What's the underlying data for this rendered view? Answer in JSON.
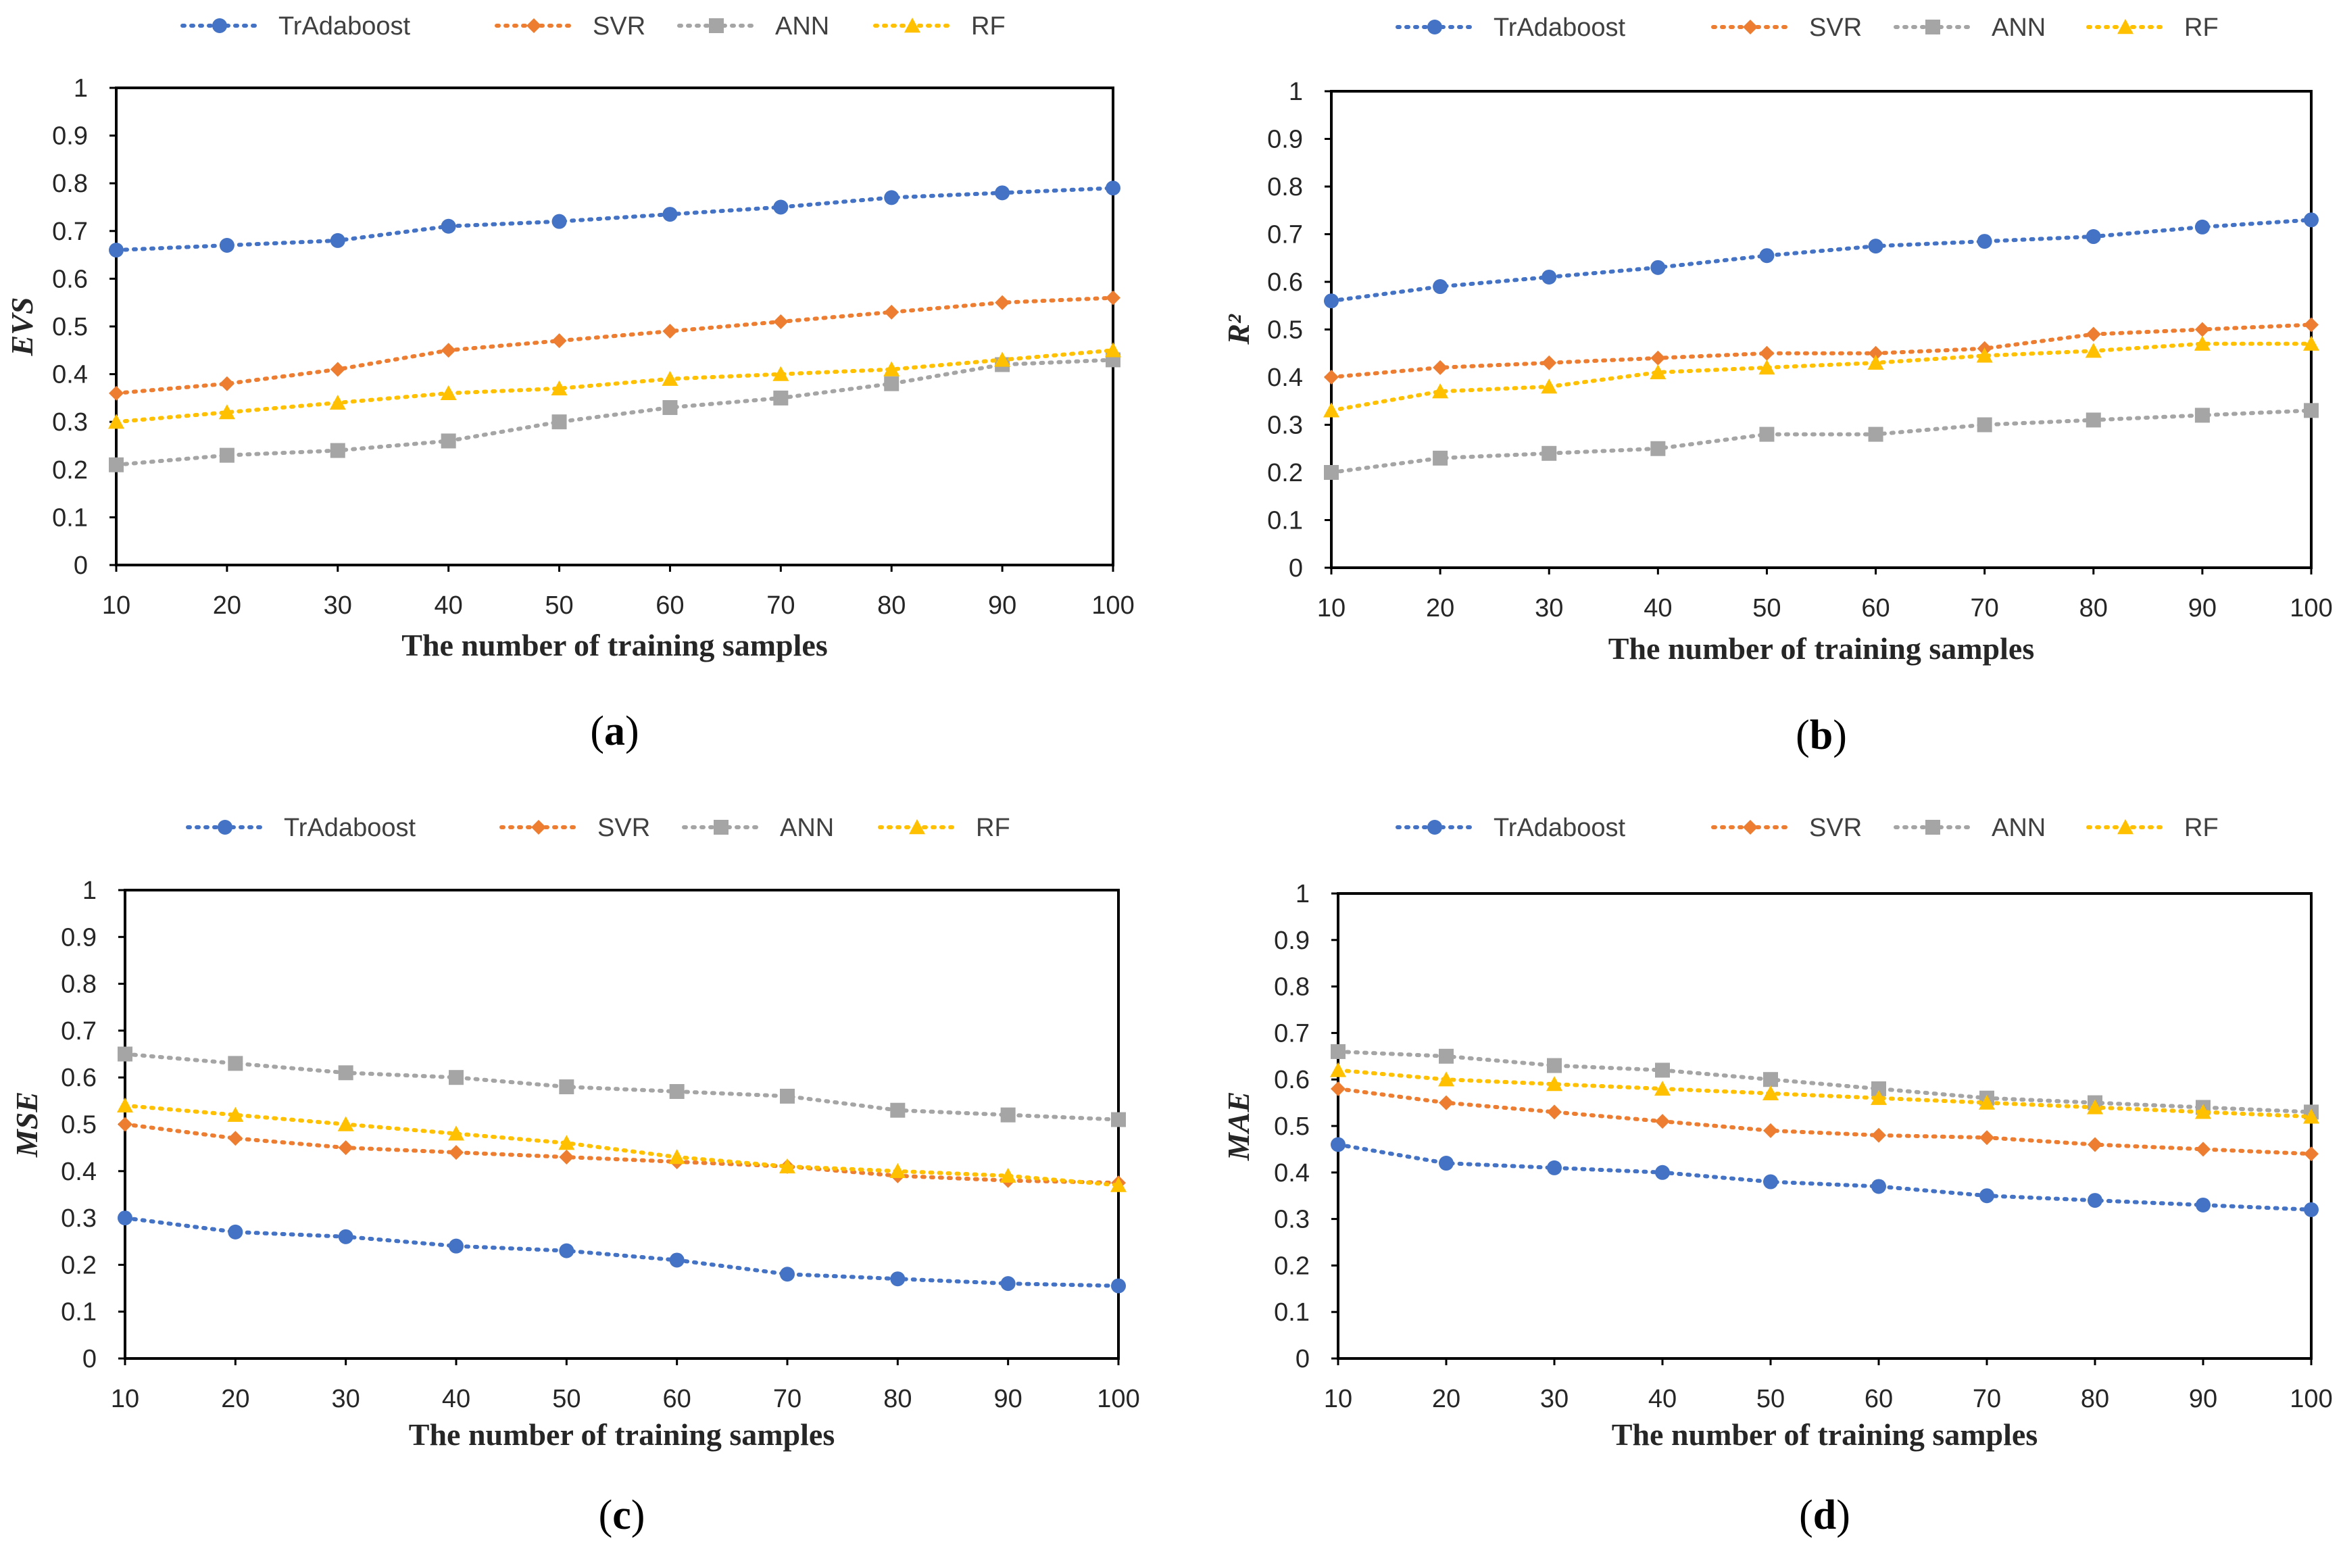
{
  "colors": {
    "TrAdaboost": "#4472C4",
    "SVR": "#ED7D31",
    "ANN": "#A5A5A5",
    "RF": "#FFC000"
  },
  "chart_data": [
    {
      "type": "line",
      "panel_label": "a",
      "panel_open": "(",
      "panel_close": ")",
      "ylabel": "EVS",
      "xlabel": "The number of training samples",
      "legend": [
        "TrAdaboost",
        "SVR",
        "ANN",
        "RF"
      ],
      "x": [
        10,
        20,
        30,
        40,
        50,
        60,
        70,
        80,
        90,
        100
      ],
      "xtick_labels": [
        "10",
        "20",
        "30",
        "40",
        "50",
        "60",
        "70",
        "80",
        "90",
        "100"
      ],
      "ylim": [
        0,
        1
      ],
      "ytick_labels": [
        "0",
        "0.1",
        "0.2",
        "0.3",
        "0.4",
        "0.5",
        "0.6",
        "0.7",
        "0.8",
        "0.9",
        "1"
      ],
      "series": [
        {
          "name": "TrAdaboost",
          "marker": "circle",
          "values": [
            0.66,
            0.67,
            0.68,
            0.71,
            0.72,
            0.735,
            0.75,
            0.77,
            0.78,
            0.79
          ]
        },
        {
          "name": "SVR",
          "marker": "diamond",
          "values": [
            0.36,
            0.38,
            0.41,
            0.45,
            0.47,
            0.49,
            0.51,
            0.53,
            0.55,
            0.56
          ]
        },
        {
          "name": "ANN",
          "marker": "square",
          "values": [
            0.21,
            0.23,
            0.24,
            0.26,
            0.3,
            0.33,
            0.35,
            0.38,
            0.42,
            0.43
          ]
        },
        {
          "name": "RF",
          "marker": "triangle",
          "values": [
            0.3,
            0.32,
            0.34,
            0.36,
            0.37,
            0.39,
            0.4,
            0.41,
            0.43,
            0.45
          ]
        }
      ]
    },
    {
      "type": "line",
      "panel_label": "b",
      "panel_open": "(",
      "panel_close": ")",
      "ylabel": "R²",
      "xlabel": "The number of training samples",
      "legend": [
        "TrAdaboost",
        "SVR",
        "ANN",
        "RF"
      ],
      "x": [
        10,
        20,
        30,
        40,
        50,
        60,
        70,
        80,
        90,
        100
      ],
      "xtick_labels": [
        "10",
        "20",
        "30",
        "40",
        "50",
        "60",
        "70",
        "80",
        "90",
        "100"
      ],
      "ylim": [
        0,
        1
      ],
      "ytick_labels": [
        "0",
        "0.1",
        "0.2",
        "0.3",
        "0.4",
        "0.5",
        "0.6",
        "0.7",
        "0.8",
        "0.9",
        "1"
      ],
      "series": [
        {
          "name": "TrAdaboost",
          "marker": "circle",
          "values": [
            0.56,
            0.59,
            0.61,
            0.63,
            0.655,
            0.675,
            0.685,
            0.695,
            0.715,
            0.73
          ]
        },
        {
          "name": "SVR",
          "marker": "diamond",
          "values": [
            0.4,
            0.42,
            0.43,
            0.44,
            0.45,
            0.45,
            0.46,
            0.49,
            0.5,
            0.51
          ]
        },
        {
          "name": "ANN",
          "marker": "square",
          "values": [
            0.2,
            0.23,
            0.24,
            0.25,
            0.28,
            0.28,
            0.3,
            0.31,
            0.32,
            0.33
          ]
        },
        {
          "name": "RF",
          "marker": "triangle",
          "values": [
            0.33,
            0.37,
            0.38,
            0.41,
            0.42,
            0.43,
            0.445,
            0.455,
            0.47,
            0.47
          ]
        }
      ]
    },
    {
      "type": "line",
      "panel_label": "c",
      "panel_open": "(",
      "panel_close": ")",
      "ylabel": "MSE",
      "xlabel": "The number of training samples",
      "legend": [
        "TrAdaboost",
        "SVR",
        "ANN",
        "RF"
      ],
      "x": [
        10,
        20,
        30,
        40,
        50,
        60,
        70,
        80,
        90,
        100
      ],
      "xtick_labels": [
        "10",
        "20",
        "30",
        "40",
        "50",
        "60",
        "70",
        "80",
        "90",
        "100"
      ],
      "ylim": [
        0,
        1
      ],
      "ytick_labels": [
        "0",
        "0.1",
        "0.2",
        "0.3",
        "0.4",
        "0.5",
        "0.6",
        "0.7",
        "0.8",
        "0.9",
        "1"
      ],
      "series": [
        {
          "name": "TrAdaboost",
          "marker": "circle",
          "values": [
            0.3,
            0.27,
            0.26,
            0.24,
            0.23,
            0.21,
            0.18,
            0.17,
            0.16,
            0.155
          ]
        },
        {
          "name": "SVR",
          "marker": "diamond",
          "values": [
            0.5,
            0.47,
            0.45,
            0.44,
            0.43,
            0.42,
            0.41,
            0.39,
            0.38,
            0.375
          ]
        },
        {
          "name": "ANN",
          "marker": "square",
          "values": [
            0.65,
            0.63,
            0.61,
            0.6,
            0.58,
            0.57,
            0.56,
            0.53,
            0.52,
            0.51
          ]
        },
        {
          "name": "RF",
          "marker": "triangle",
          "values": [
            0.54,
            0.52,
            0.5,
            0.48,
            0.46,
            0.43,
            0.41,
            0.4,
            0.39,
            0.37
          ]
        }
      ]
    },
    {
      "type": "line",
      "panel_label": "d",
      "panel_open": "(",
      "panel_close": ")",
      "ylabel": "MAE",
      "xlabel": "The number of training samples",
      "legend": [
        "TrAdaboost",
        "SVR",
        "ANN",
        "RF"
      ],
      "x": [
        10,
        20,
        30,
        40,
        50,
        60,
        70,
        80,
        90,
        100
      ],
      "xtick_labels": [
        "10",
        "20",
        "30",
        "40",
        "50",
        "60",
        "70",
        "80",
        "90",
        "100"
      ],
      "ylim": [
        0,
        1
      ],
      "ytick_labels": [
        "0",
        "0.1",
        "0.2",
        "0.3",
        "0.4",
        "0.5",
        "0.6",
        "0.7",
        "0.8",
        "0.9",
        "1"
      ],
      "series": [
        {
          "name": "TrAdaboost",
          "marker": "circle",
          "values": [
            0.46,
            0.42,
            0.41,
            0.4,
            0.38,
            0.37,
            0.35,
            0.34,
            0.33,
            0.32
          ]
        },
        {
          "name": "SVR",
          "marker": "diamond",
          "values": [
            0.58,
            0.55,
            0.53,
            0.51,
            0.49,
            0.48,
            0.475,
            0.46,
            0.45,
            0.44
          ]
        },
        {
          "name": "ANN",
          "marker": "square",
          "values": [
            0.66,
            0.65,
            0.63,
            0.62,
            0.6,
            0.58,
            0.56,
            0.55,
            0.54,
            0.53
          ]
        },
        {
          "name": "RF",
          "marker": "triangle",
          "values": [
            0.62,
            0.6,
            0.59,
            0.58,
            0.57,
            0.56,
            0.55,
            0.54,
            0.53,
            0.52
          ]
        }
      ]
    }
  ]
}
